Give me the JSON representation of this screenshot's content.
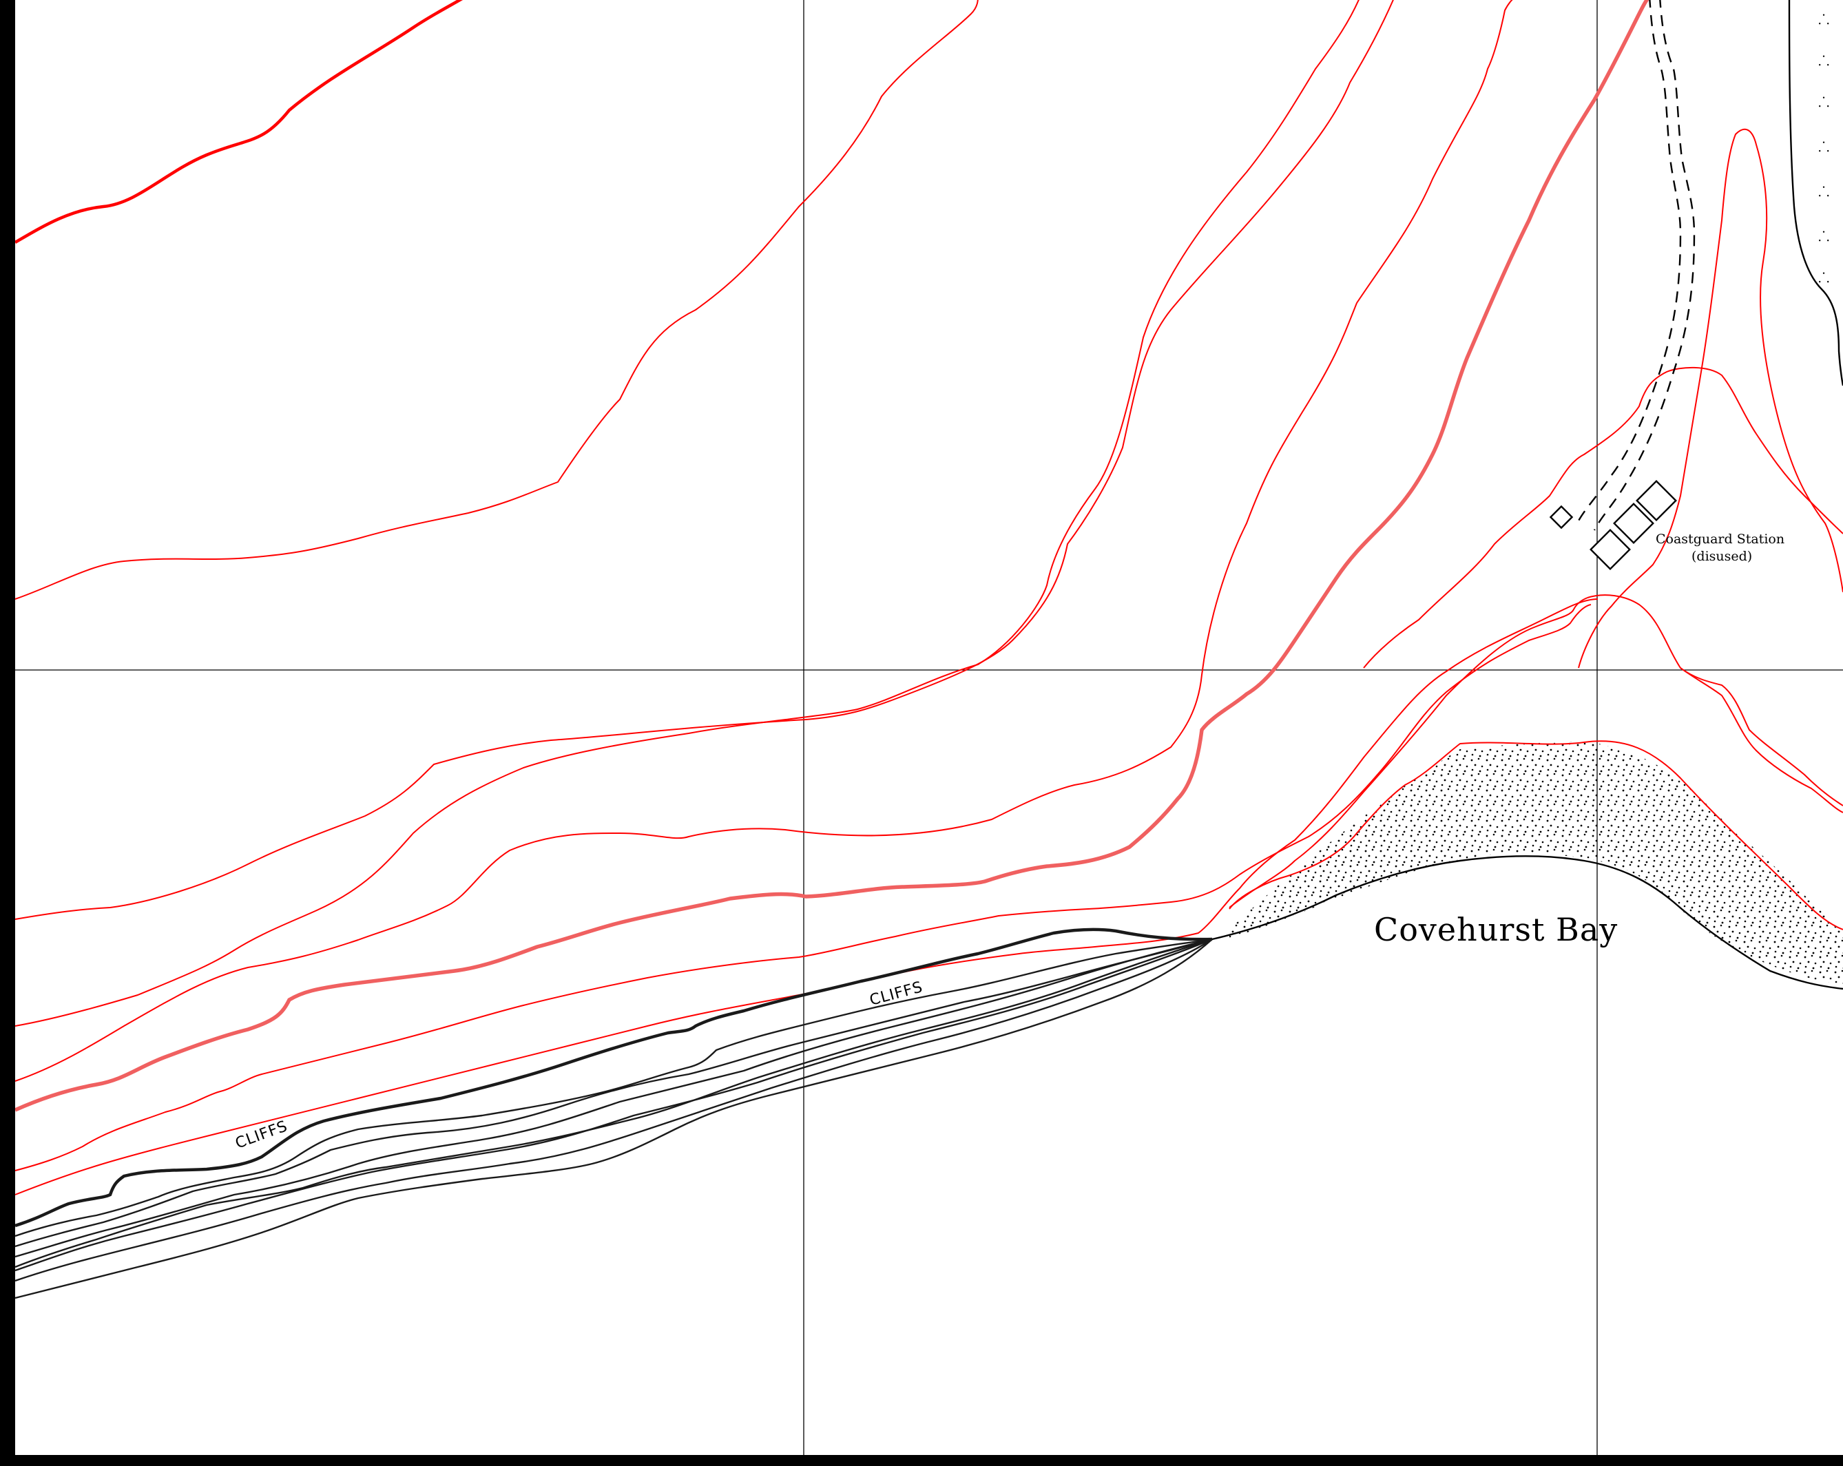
{
  "map": {
    "labels": {
      "bay": "Covehurst Bay",
      "station_line1": "Coastguard Station",
      "station_line2": "(disused)",
      "cliffs_left": "CLIFFS",
      "cliffs_right": "CLIFFS"
    },
    "colors": {
      "contour": "#ff0000",
      "index_contour": "#f06060",
      "cliff": "#1a1a1a",
      "frame": "#000000",
      "background": "#ffffff"
    },
    "symbols": {
      "vegetation": "marsh-tuft-icon",
      "beach": "stipple-sand-pattern",
      "track": "dashed-double-track",
      "building": "square-building-icon"
    }
  }
}
